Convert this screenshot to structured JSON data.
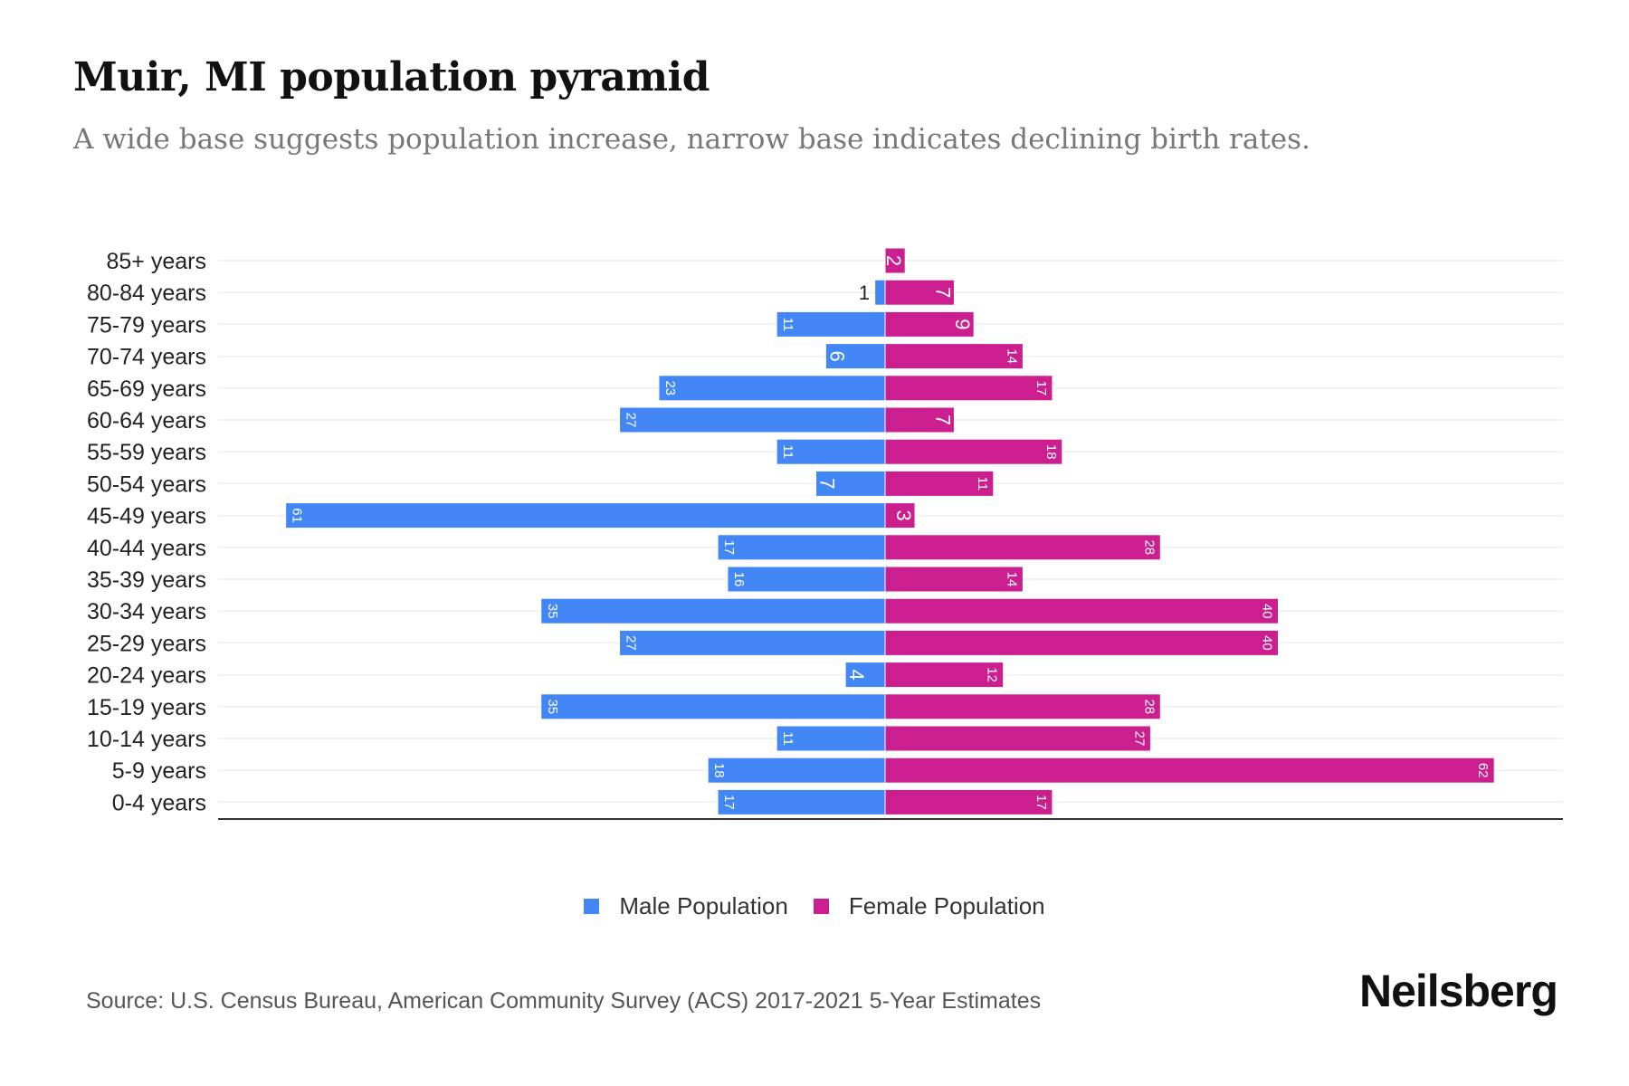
{
  "title": "Muir, MI population pyramid",
  "subtitle": "A wide base suggests population increase, narrow base indicates declining birth rates.",
  "source": "Source: U.S. Census Bureau, American Community Survey (ACS) 2017-2021 5-Year Estimates",
  "logo": "Neilsberg",
  "colors": {
    "male": "#4287f5",
    "female": "#cc1f8f"
  },
  "chart_data": {
    "type": "bar",
    "orientation": "horizontal-pyramid",
    "title": "Muir, MI population pyramid",
    "categories": [
      "85+ years",
      "80-84 years",
      "75-79 years",
      "70-74 years",
      "65-69 years",
      "60-64 years",
      "55-59 years",
      "50-54 years",
      "45-49 years",
      "40-44 years",
      "35-39 years",
      "30-34 years",
      "25-29 years",
      "20-24 years",
      "15-19 years",
      "10-14 years",
      "5-9 years",
      "0-4 years"
    ],
    "series": [
      {
        "name": "Male Population",
        "values": [
          0,
          1,
          11,
          6,
          23,
          27,
          11,
          7,
          61,
          17,
          16,
          35,
          27,
          4,
          35,
          11,
          18,
          17
        ]
      },
      {
        "name": "Female Population",
        "values": [
          2,
          7,
          9,
          14,
          17,
          7,
          18,
          11,
          3,
          28,
          14,
          40,
          40,
          12,
          28,
          27,
          62,
          17
        ]
      }
    ],
    "legend": "bottom-center",
    "grid": true
  }
}
